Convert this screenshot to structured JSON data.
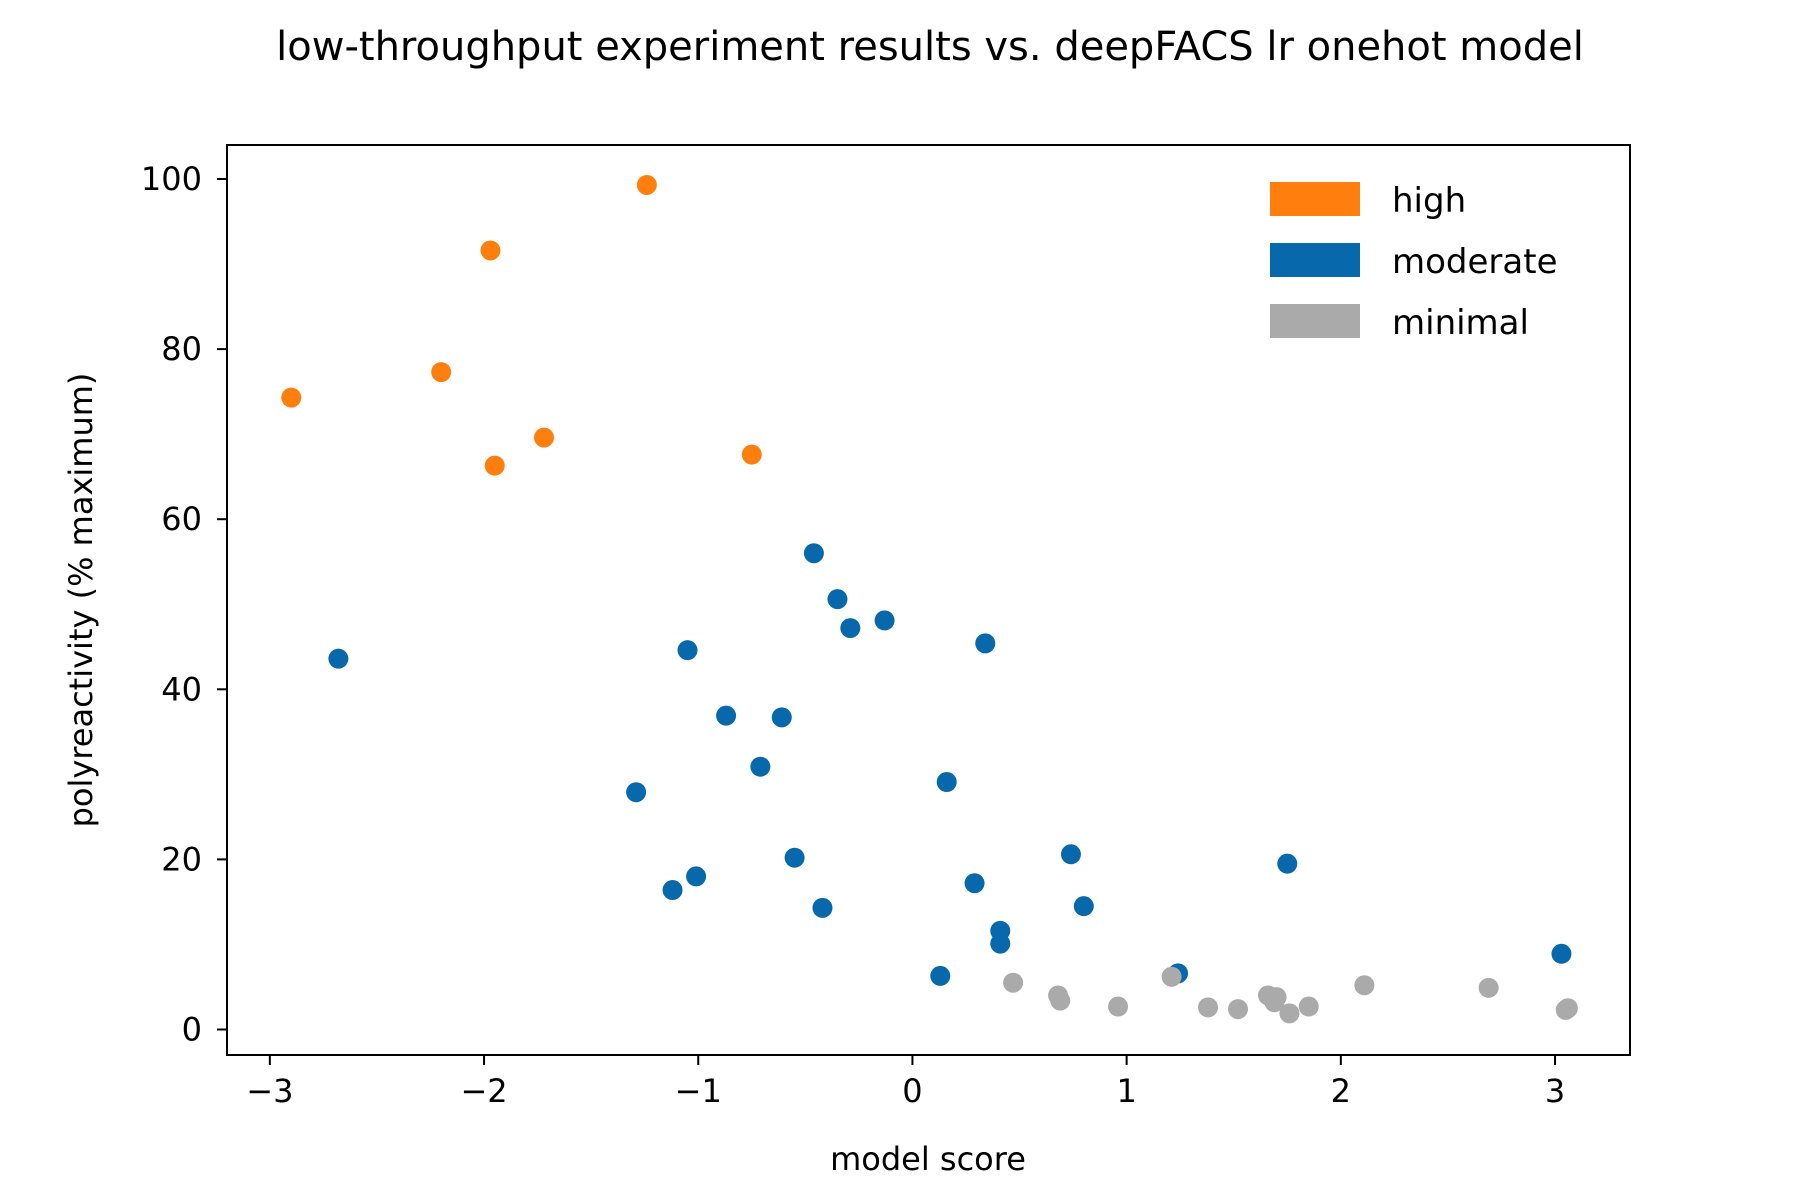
{
  "chart_data": {
    "type": "scatter",
    "title": "low-throughput experiment results vs. deepFACS lr onehot model",
    "xlabel": "model score",
    "ylabel": "polyreactivity (% maximum)",
    "xlim": [
      -3.2,
      3.35
    ],
    "ylim": [
      -3,
      104
    ],
    "xticks": [
      -3,
      -2,
      -1,
      0,
      1,
      2,
      3
    ],
    "xtick_labels": [
      "−3",
      "−2",
      "−1",
      "0",
      "1",
      "2",
      "3"
    ],
    "yticks": [
      0,
      20,
      40,
      60,
      80,
      100
    ],
    "ytick_labels": [
      "0",
      "20",
      "40",
      "60",
      "80",
      "100"
    ],
    "grid": false,
    "legend_position": "top-right",
    "series": [
      {
        "name": "high",
        "color": "#ff7f0e",
        "points": [
          [
            -2.9,
            74.3
          ],
          [
            -2.2,
            77.3
          ],
          [
            -1.97,
            91.6
          ],
          [
            -1.95,
            66.3
          ],
          [
            -1.72,
            69.6
          ],
          [
            -1.24,
            99.3
          ],
          [
            -0.75,
            67.6
          ]
        ]
      },
      {
        "name": "moderate",
        "color": "#0868ac",
        "points": [
          [
            -2.68,
            43.6
          ],
          [
            -1.29,
            27.9
          ],
          [
            -1.12,
            16.4
          ],
          [
            -1.05,
            44.6
          ],
          [
            -1.01,
            18.0
          ],
          [
            -0.87,
            36.9
          ],
          [
            -0.71,
            30.9
          ],
          [
            -0.61,
            36.7
          ],
          [
            -0.55,
            20.2
          ],
          [
            -0.46,
            56.0
          ],
          [
            -0.42,
            14.3
          ],
          [
            -0.35,
            50.6
          ],
          [
            -0.29,
            47.2
          ],
          [
            -0.13,
            48.1
          ],
          [
            0.13,
            6.3
          ],
          [
            0.16,
            29.1
          ],
          [
            0.29,
            17.2
          ],
          [
            0.34,
            45.4
          ],
          [
            0.41,
            11.6
          ],
          [
            0.41,
            10.1
          ],
          [
            0.74,
            20.6
          ],
          [
            0.8,
            14.5
          ],
          [
            1.24,
            6.6
          ],
          [
            1.75,
            19.5
          ],
          [
            3.03,
            8.9
          ]
        ]
      },
      {
        "name": "minimal",
        "color": "#aaaaaa",
        "points": [
          [
            0.47,
            5.5
          ],
          [
            0.68,
            4.0
          ],
          [
            0.69,
            3.4
          ],
          [
            0.96,
            2.7
          ],
          [
            1.21,
            6.2
          ],
          [
            1.38,
            2.6
          ],
          [
            1.52,
            2.4
          ],
          [
            1.66,
            4.0
          ],
          [
            1.7,
            3.8
          ],
          [
            1.69,
            3.2
          ],
          [
            1.76,
            1.9
          ],
          [
            1.85,
            2.7
          ],
          [
            2.11,
            5.2
          ],
          [
            2.69,
            4.9
          ],
          [
            3.06,
            2.5
          ],
          [
            3.05,
            2.3
          ]
        ]
      }
    ]
  }
}
